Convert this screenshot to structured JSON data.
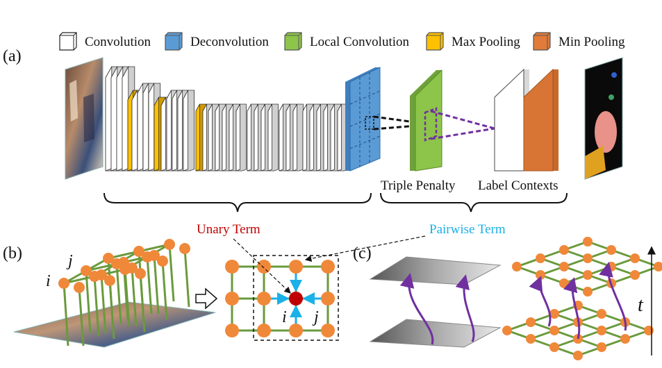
{
  "legend": [
    {
      "label": "Convolution",
      "color": "#ffffff"
    },
    {
      "label": "Deconvolution",
      "color": "#5b9bd5"
    },
    {
      "label": "Local Convolution",
      "color": "#8dc44a"
    },
    {
      "label": "Max Pooling",
      "color": "#ffc000"
    },
    {
      "label": "Min Pooling",
      "color": "#e07b39"
    }
  ],
  "panels": {
    "a": "(a)",
    "b": "(b)",
    "c": "(c)"
  },
  "captions": {
    "triple_penalty": "Triple Penalty",
    "label_contexts": "Label Contexts"
  },
  "terms": {
    "unary": "Unary Term",
    "pairwise": "Pairwise Term"
  },
  "indices": {
    "i": "i",
    "j": "j",
    "t": "t"
  },
  "colors": {
    "node": "#f0883a",
    "edge": "#6a9a3c",
    "unary": "#c00000",
    "pairwise": "#1ab0e8",
    "purple": "#7030a0"
  }
}
